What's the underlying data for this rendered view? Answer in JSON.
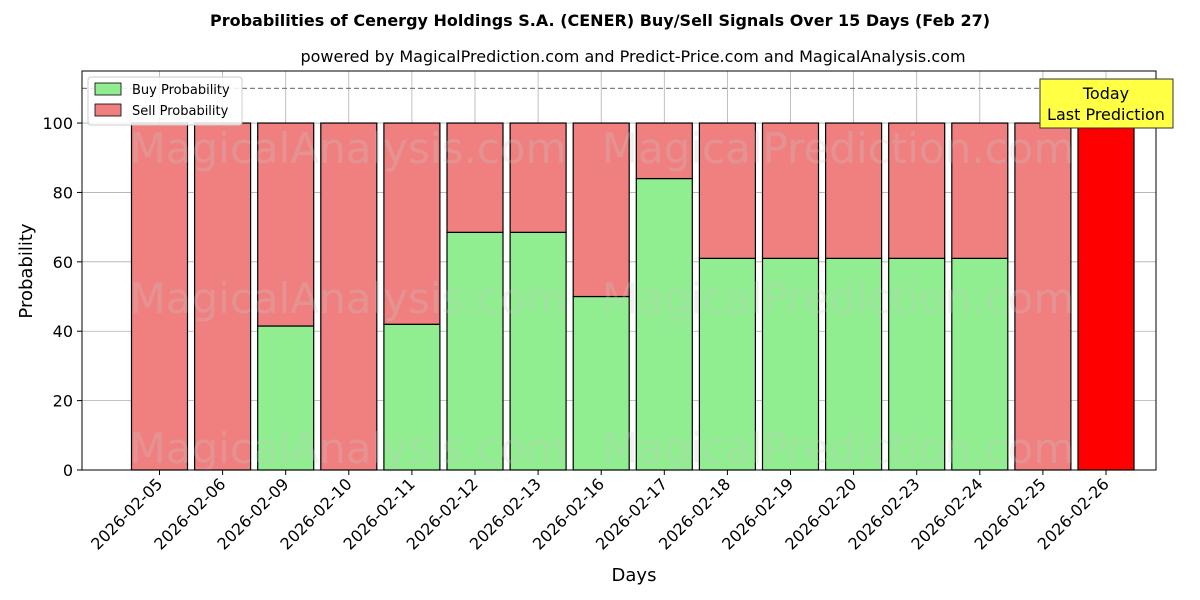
{
  "title": "Probabilities of Cenergy Holdings S.A. (CENER) Buy/Sell Signals Over 15 Days (Feb 27)",
  "subtitle": "powered by MagicalPrediction.com and Predict-Price.com and MagicalAnalysis.com",
  "watermarks": [
    "MagicalAnalysis.com",
    "MagicalPrediction.com"
  ],
  "annotation": {
    "line1": "Today",
    "line2": "Last Prediction"
  },
  "colors": {
    "buy": "#90ee90",
    "sell": "#f08080",
    "today_sell": "#ff0000",
    "annotation_bg": "#ffff44"
  },
  "chart_data": {
    "type": "bar",
    "stacked": true,
    "xlabel": "Days",
    "ylabel": "Probability",
    "ylim": [
      0,
      115
    ],
    "yticks": [
      0,
      20,
      40,
      60,
      80,
      100
    ],
    "reference_line": 110,
    "grid": true,
    "legend_position": "top-left",
    "categories": [
      "2026-02-05",
      "2026-02-06",
      "2026-02-09",
      "2026-02-10",
      "2026-02-11",
      "2026-02-12",
      "2026-02-13",
      "2026-02-16",
      "2026-02-17",
      "2026-02-18",
      "2026-02-19",
      "2026-02-20",
      "2026-02-23",
      "2026-02-24",
      "2026-02-25",
      "2026-02-26"
    ],
    "series": [
      {
        "name": "Buy Probability",
        "values": [
          0,
          0,
          41.5,
          0,
          42,
          68.5,
          68.5,
          50,
          84,
          61,
          61,
          61,
          61,
          61,
          0,
          0
        ]
      },
      {
        "name": "Sell Probability",
        "values": [
          100,
          100,
          58.5,
          100,
          58,
          31.5,
          31.5,
          50,
          16,
          39,
          39,
          39,
          39,
          39,
          100,
          100
        ]
      }
    ]
  }
}
